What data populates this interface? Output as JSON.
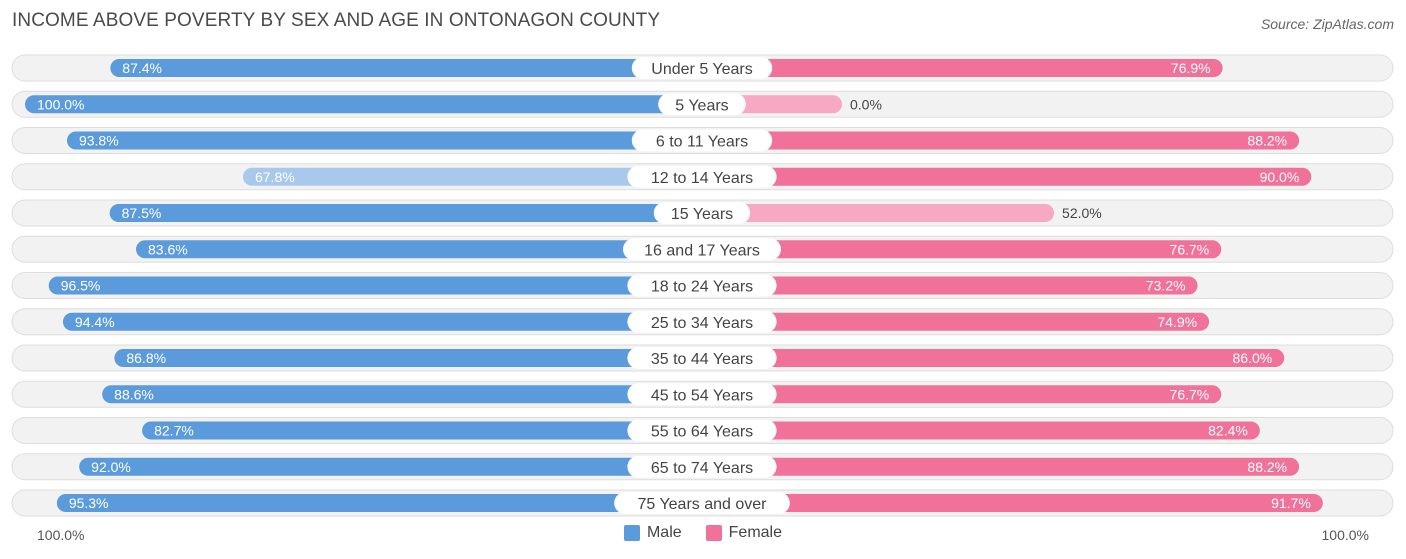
{
  "header": {
    "title": "INCOME ABOVE POVERTY BY SEX AND AGE IN ONTONAGON COUNTY",
    "source": "Source: ZipAtlas.com"
  },
  "legend": {
    "male": "Male",
    "female": "Female"
  },
  "axis": {
    "left_label": "100.0%",
    "right_label": "100.0%"
  },
  "colors": {
    "male_strong": "#5b9bdc",
    "male_light": "#a9c9ec",
    "female_strong": "#f0729b",
    "female_light": "#f7a8c3",
    "row_background": "#efefef",
    "row_border": "#dddddd"
  },
  "chart_data": {
    "type": "bar",
    "orientation": "horizontal-diverging",
    "title": "INCOME ABOVE POVERTY BY SEX AND AGE IN ONTONAGON COUNTY",
    "xlim": [
      0,
      100
    ],
    "unit": "%",
    "categories": [
      "Under 5 Years",
      "5 Years",
      "6 to 11 Years",
      "12 to 14 Years",
      "15 Years",
      "16 and 17 Years",
      "18 to 24 Years",
      "25 to 34 Years",
      "35 to 44 Years",
      "45 to 54 Years",
      "55 to 64 Years",
      "65 to 74 Years",
      "75 Years and over"
    ],
    "series": [
      {
        "name": "Male",
        "values": [
          87.4,
          100.0,
          93.8,
          67.8,
          87.5,
          83.6,
          96.5,
          94.4,
          86.8,
          88.6,
          82.7,
          92.0,
          95.3
        ],
        "labels": [
          "87.4%",
          "100.0%",
          "93.8%",
          "67.8%",
          "87.5%",
          "83.6%",
          "96.5%",
          "94.4%",
          "86.8%",
          "88.6%",
          "82.7%",
          "92.0%",
          "95.3%"
        ]
      },
      {
        "name": "Female",
        "values": [
          76.9,
          0.0,
          88.2,
          90.0,
          52.0,
          76.7,
          73.2,
          74.9,
          86.0,
          76.7,
          82.4,
          88.2,
          91.7
        ],
        "labels": [
          "76.9%",
          "0.0%",
          "88.2%",
          "90.0%",
          "52.0%",
          "76.7%",
          "73.2%",
          "74.9%",
          "86.0%",
          "76.7%",
          "82.4%",
          "88.2%",
          "91.7%"
        ]
      }
    ]
  }
}
